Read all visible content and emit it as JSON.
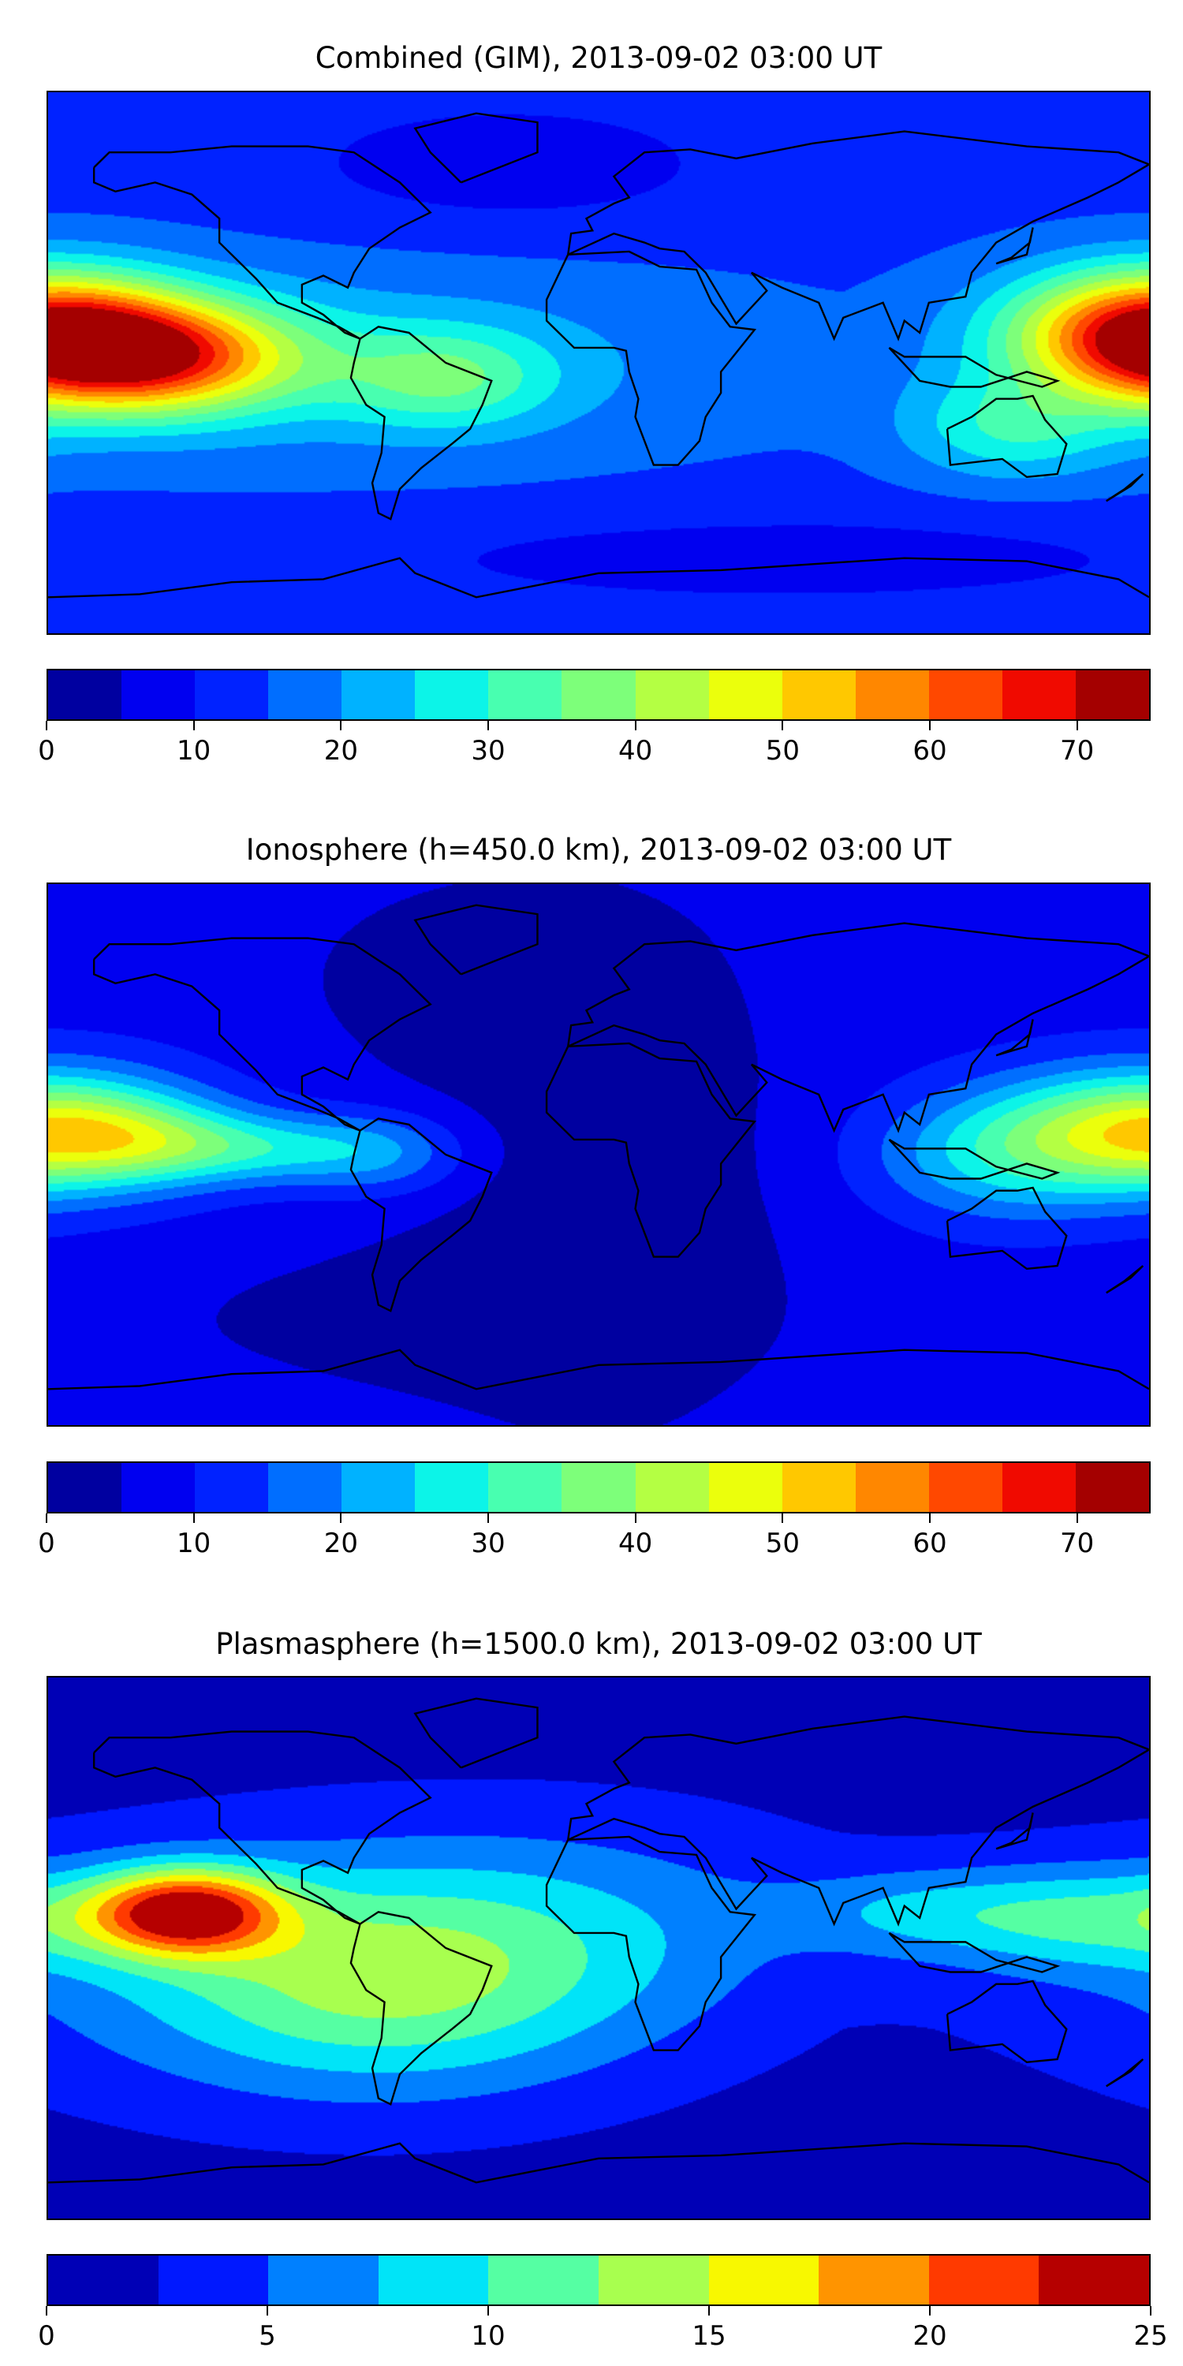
{
  "chart_data": [
    {
      "type": "heatmap",
      "title": "Combined (GIM), 2013-09-02 03:00 UT",
      "projection": "equirectangular",
      "xlim": [
        -180,
        180
      ],
      "ylim": [
        -90,
        90
      ],
      "colorbar": {
        "levels": [
          0,
          5,
          10,
          15,
          20,
          25,
          30,
          35,
          40,
          45,
          50,
          55,
          60,
          65,
          70,
          75
        ],
        "ticks": [
          "0",
          "10",
          "20",
          "30",
          "40",
          "50",
          "60",
          "70"
        ],
        "tick_values": [
          0,
          10,
          20,
          30,
          40,
          50,
          60,
          70
        ],
        "colors": [
          "#0000a0",
          "#0000f0",
          "#0022ff",
          "#006eff",
          "#00b2ff",
          "#0cf4e8",
          "#48ffb0",
          "#7dff7a",
          "#b4ff43",
          "#ebff0c",
          "#ffc800",
          "#ff8700",
          "#ff4800",
          "#f00a00",
          "#a40000"
        ]
      },
      "background_value": 13,
      "features": [
        {
          "lon": -150,
          "lat": 2,
          "sx": 35,
          "sy": 13,
          "amp": 48
        },
        {
          "lon": 178,
          "lat": 12,
          "sx": 30,
          "sy": 14,
          "amp": 40
        },
        {
          "lon": -50,
          "lat": -5,
          "sx": 25,
          "sy": 12,
          "amp": 16
        },
        {
          "lon": -100,
          "lat": 0,
          "sx": 120,
          "sy": 25,
          "amp": 9
        },
        {
          "lon": 135,
          "lat": -22,
          "sx": 25,
          "sy": 12,
          "amp": 14
        },
        {
          "lon": -30,
          "lat": 65,
          "sx": 50,
          "sy": 15,
          "amp": -6
        },
        {
          "lon": 60,
          "lat": -65,
          "sx": 90,
          "sy": 10,
          "amp": -6
        }
      ]
    },
    {
      "type": "heatmap",
      "title": "Ionosphere  (h=450.0 km), 2013-09-02 03:00 UT",
      "projection": "equirectangular",
      "xlim": [
        -180,
        180
      ],
      "ylim": [
        -90,
        90
      ],
      "colorbar": {
        "levels": [
          0,
          5,
          10,
          15,
          20,
          25,
          30,
          35,
          40,
          45,
          50,
          55,
          60,
          65,
          70,
          75
        ],
        "ticks": [
          "0",
          "10",
          "20",
          "30",
          "40",
          "50",
          "60",
          "70"
        ],
        "tick_values": [
          0,
          10,
          20,
          30,
          40,
          50,
          60,
          70
        ],
        "colors": [
          "#0000a0",
          "#0000f0",
          "#0022ff",
          "#006eff",
          "#00b2ff",
          "#0cf4e8",
          "#48ffb0",
          "#7dff7a",
          "#b4ff43",
          "#ebff0c",
          "#ffc800",
          "#ff8700",
          "#ff4800",
          "#f00a00",
          "#a40000"
        ]
      },
      "background_value": 8,
      "features": [
        {
          "lon": 180,
          "lat": 8,
          "sx": 32,
          "sy": 14,
          "amp": 36
        },
        {
          "lon": -150,
          "lat": 5,
          "sx": 25,
          "sy": 10,
          "amp": 12
        },
        {
          "lon": -110,
          "lat": 2,
          "sx": 30,
          "sy": 8,
          "amp": 16
        },
        {
          "lon": -70,
          "lat": 0,
          "sx": 20,
          "sy": 10,
          "amp": 10
        },
        {
          "lon": 130,
          "lat": 0,
          "sx": 30,
          "sy": 15,
          "amp": 16
        },
        {
          "lon": 0,
          "lat": -10,
          "sx": 50,
          "sy": 70,
          "amp": -6
        },
        {
          "lon": -60,
          "lat": -55,
          "sx": 60,
          "sy": 15,
          "amp": -5
        },
        {
          "lon": -40,
          "lat": 60,
          "sx": 40,
          "sy": 20,
          "amp": -5
        }
      ]
    },
    {
      "type": "heatmap",
      "title": "Plasmasphere (h=1500.0 km), 2013-09-02 03:00 UT",
      "projection": "equirectangular",
      "xlim": [
        -180,
        180
      ],
      "ylim": [
        -90,
        90
      ],
      "colorbar": {
        "levels": [
          0,
          2.5,
          5,
          7.5,
          10,
          12.5,
          15,
          17.5,
          20,
          22.5,
          25
        ],
        "ticks": [
          "0",
          "5",
          "10",
          "15",
          "20",
          "25"
        ],
        "tick_values": [
          0,
          5,
          10,
          15,
          20,
          25
        ],
        "colors": [
          "#0000b6",
          "#0018ff",
          "#0080ff",
          "#00e4f8",
          "#55ffa3",
          "#a8ff4f",
          "#f8f800",
          "#ff9400",
          "#ff3a00",
          "#b60000"
        ]
      },
      "background_value": 1.5,
      "features": [
        {
          "lon": -135,
          "lat": 12,
          "sx": 22,
          "sy": 10,
          "amp": 19
        },
        {
          "lon": -70,
          "lat": -12,
          "sx": 55,
          "sy": 25,
          "amp": 8
        },
        {
          "lon": -100,
          "lat": -5,
          "sx": 90,
          "sy": 30,
          "amp": 4
        },
        {
          "lon": 160,
          "lat": 10,
          "sx": 35,
          "sy": 12,
          "amp": 7
        },
        {
          "lon": 100,
          "lat": 12,
          "sx": 30,
          "sy": 10,
          "amp": 4
        },
        {
          "lon": 0,
          "lat": 10,
          "sx": 60,
          "sy": 25,
          "amp": 3
        }
      ]
    }
  ]
}
